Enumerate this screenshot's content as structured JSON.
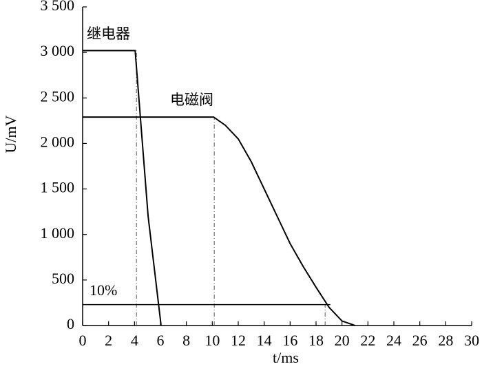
{
  "chart_data": {
    "type": "line",
    "x_label": "t/ms",
    "y_label": "U/mV",
    "xlim": [
      0,
      30
    ],
    "xticks": [
      0,
      2,
      4,
      6,
      8,
      10,
      12,
      14,
      16,
      18,
      20,
      22,
      24,
      26,
      28,
      30
    ],
    "ylim": [
      0,
      3500
    ],
    "yticks": [
      0,
      500,
      {
        "value": 1000,
        "label": "1 000"
      },
      {
        "value": 1500,
        "label": "1 500"
      },
      {
        "value": 2000,
        "label": "2 000"
      },
      {
        "value": 2500,
        "label": "2 500"
      },
      {
        "value": 3000,
        "label": "3 000"
      },
      {
        "value": 3500,
        "label": "3 500"
      }
    ],
    "series": [
      {
        "name": "继电器",
        "color": "#000000",
        "x": [
          0,
          4.05,
          5.05,
          6.05
        ],
        "values": [
          3020,
          3020,
          1200,
          0
        ]
      },
      {
        "name": "电磁阀",
        "color": "#000000",
        "x": [
          0,
          10.1,
          11,
          12,
          13,
          14,
          15,
          16,
          17,
          18,
          19,
          20,
          21
        ],
        "values": [
          2290,
          2290,
          2200,
          2050,
          1800,
          1500,
          1200,
          900,
          650,
          420,
          200,
          50,
          0
        ]
      }
    ],
    "threshold": {
      "label": "10%",
      "value": 230,
      "x": [
        0,
        19.1
      ]
    },
    "drop_lines": [
      {
        "x": 4.15,
        "y": 3020
      },
      {
        "x": 10.15,
        "y": 2290
      },
      {
        "x": 18.7,
        "y": 230
      }
    ]
  }
}
